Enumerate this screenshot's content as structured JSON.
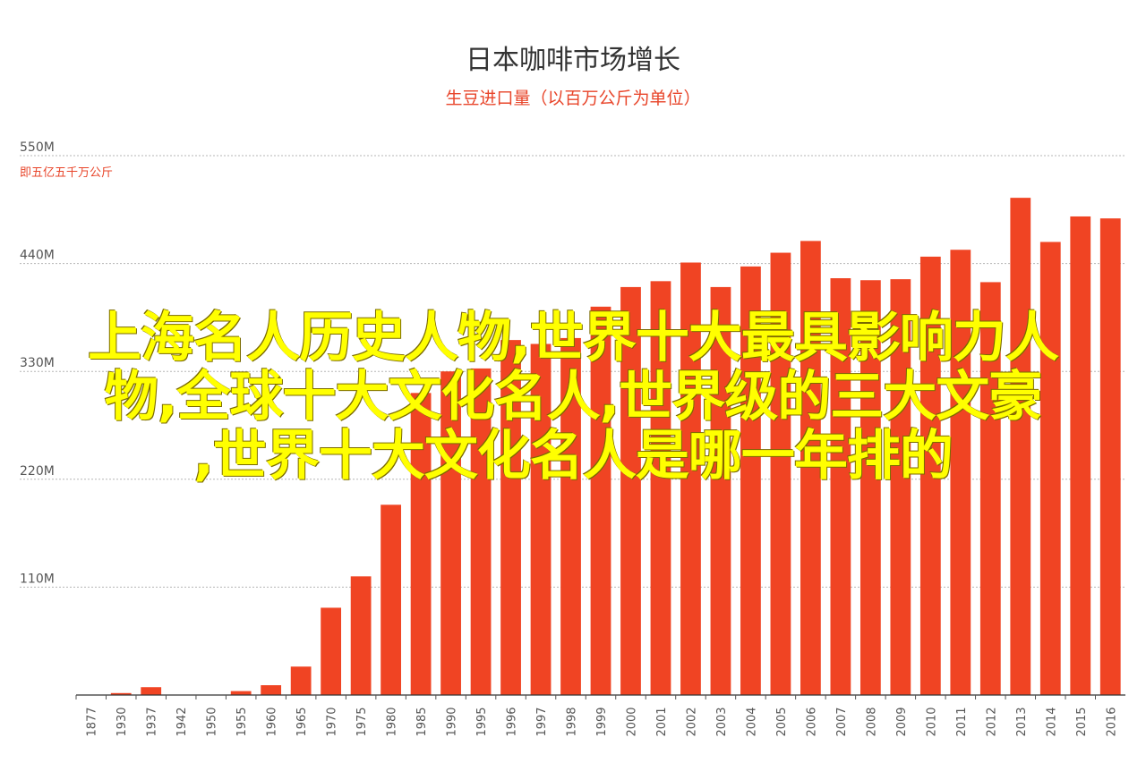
{
  "chart_data": {
    "type": "bar",
    "title": "日本咖啡市场增长",
    "subtitle": "生豆进口量（以百万公斤为单位）",
    "ylabel_note": "即五亿五千万公斤",
    "y_tick_labels": [
      "550M",
      "440M",
      "330M",
      "220M",
      "110M"
    ],
    "y_ticks": [
      550,
      440,
      330,
      220,
      110
    ],
    "ylim": [
      0,
      550
    ],
    "grid": true,
    "bar_color": "#f04423",
    "categories": [
      "1877",
      "1930",
      "1937",
      "1942",
      "1950",
      "1955",
      "1960",
      "1965",
      "1970",
      "1975",
      "1980",
      "1985",
      "1990",
      "1995",
      "1996",
      "1997",
      "1998",
      "1999",
      "2000",
      "2001",
      "2002",
      "2003",
      "2004",
      "2005",
      "2006",
      "2007",
      "2008",
      "2009",
      "2010",
      "2011",
      "2012",
      "2013",
      "2014",
      "2015",
      "2016"
    ],
    "values": [
      0,
      2,
      8,
      0,
      0,
      4,
      10,
      29,
      89,
      121,
      194,
      308,
      330,
      333,
      362,
      358,
      364,
      396,
      416,
      422,
      441,
      416,
      437,
      451,
      463,
      425,
      423,
      424,
      447,
      454,
      421,
      507,
      462,
      488,
      486
    ]
  },
  "overlay_text": {
    "line1": "上海名人历史人物,世界十大最具影响力人",
    "line2": "物,全球十大文化名人,世界级的三大文豪",
    "line3": ",世界十大文化名人是哪一年排的"
  }
}
